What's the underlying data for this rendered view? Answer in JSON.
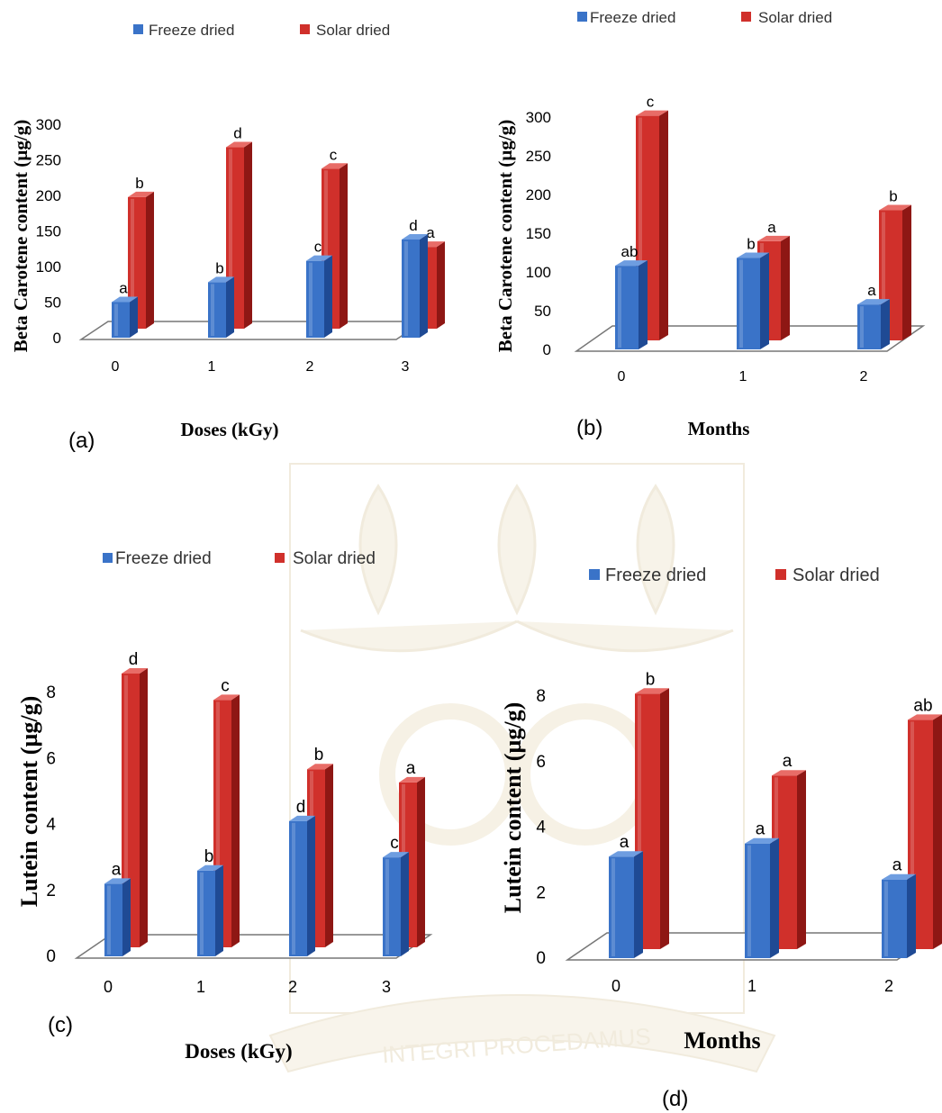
{
  "figure": {
    "panel_labels": [
      "(a)",
      "(b)",
      "(c)",
      "(d)"
    ],
    "watermark_text": "INTEGRI PROCEDAMUS"
  },
  "colors": {
    "freeze": "#3A73C8",
    "freeze_dark": "#1F4A94",
    "freeze_light": "#6E9DE0",
    "solar": "#D0302B",
    "solar_dark": "#8E1714",
    "solar_light": "#E86C67",
    "watermark": "#E6DCC2"
  },
  "chart_data": [
    {
      "id": "a",
      "type": "bar",
      "xlabel": "Doses (kGy)",
      "ylabel": "Beta Carotene content (µg/g)",
      "categories": [
        "0",
        "1",
        "2",
        "3"
      ],
      "ylim": [
        0,
        300
      ],
      "yticks": [
        0,
        50,
        100,
        150,
        200,
        250,
        300
      ],
      "series": [
        {
          "name": "Freeze dried",
          "values": [
            50,
            78,
            108,
            138
          ],
          "letters": [
            "a",
            "b",
            "c",
            "d"
          ]
        },
        {
          "name": "Solar dried",
          "values": [
            185,
            255,
            225,
            115
          ],
          "letters": [
            "b",
            "d",
            "c",
            "a"
          ]
        }
      ]
    },
    {
      "id": "b",
      "type": "bar",
      "xlabel": "Months",
      "ylabel": "Beta Carotene content (µg/g)",
      "categories": [
        "0",
        "1",
        "2"
      ],
      "ylim": [
        0,
        300
      ],
      "yticks": [
        0,
        50,
        100,
        150,
        200,
        250,
        300
      ],
      "series": [
        {
          "name": "Freeze dried",
          "values": [
            108,
            118,
            58
          ],
          "letters": [
            "ab",
            "b",
            "a"
          ]
        },
        {
          "name": "Solar dried",
          "values": [
            290,
            128,
            168
          ],
          "letters": [
            "c",
            "a",
            "b"
          ]
        }
      ]
    },
    {
      "id": "c",
      "type": "bar",
      "xlabel": "Doses (kGy)",
      "ylabel": "Lutein content (µg/g)",
      "categories": [
        "0",
        "1",
        "2",
        "3"
      ],
      "ylim": [
        0,
        8
      ],
      "yticks": [
        0,
        2,
        4,
        6,
        8
      ],
      "series": [
        {
          "name": "Freeze dried",
          "values": [
            2.2,
            2.6,
            4.1,
            3.0
          ],
          "letters": [
            "a",
            "b",
            "d",
            "c"
          ]
        },
        {
          "name": "Solar dried",
          "values": [
            8.3,
            7.5,
            5.4,
            5.0
          ],
          "letters": [
            "d",
            "c",
            "b",
            "a"
          ]
        }
      ]
    },
    {
      "id": "d",
      "type": "bar",
      "xlabel": "Months",
      "ylabel": "Lutein content (µg/g)",
      "categories": [
        "0",
        "1",
        "2"
      ],
      "ylim": [
        0,
        8
      ],
      "yticks": [
        0,
        2,
        4,
        6,
        8
      ],
      "series": [
        {
          "name": "Freeze dried",
          "values": [
            3.1,
            3.5,
            2.4
          ],
          "letters": [
            "a",
            "a",
            "a"
          ]
        },
        {
          "name": "Solar dried",
          "values": [
            7.8,
            5.3,
            7.0
          ],
          "letters": [
            "b",
            "a",
            "ab"
          ]
        }
      ]
    }
  ]
}
